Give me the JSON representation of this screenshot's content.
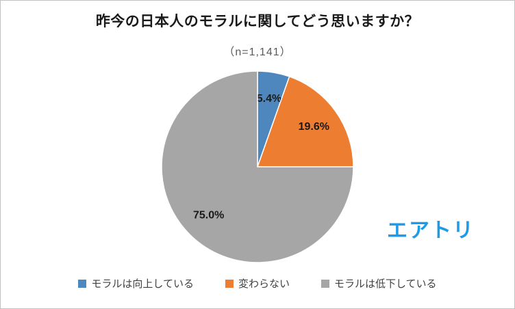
{
  "chart_data": {
    "type": "pie",
    "title": "昨今の日本人のモラルに関してどう思いますか？",
    "subtitle": "（n=1,141）",
    "start_angle_deg": 0,
    "direction": "clockwise",
    "legend_position": "bottom",
    "slices": [
      {
        "label": "モラルは向上している",
        "value": 5.4,
        "data_label": "5.4%",
        "color": "#4e87be"
      },
      {
        "label": "変わらない",
        "value": 19.6,
        "data_label": "19.6%",
        "color": "#ed7d31"
      },
      {
        "label": "モラルは低下している",
        "value": 75.0,
        "data_label": "75.0%",
        "color": "#a6a6a6"
      }
    ]
  },
  "logo": {
    "text": "エアトリ",
    "color": "#1e9be6"
  }
}
